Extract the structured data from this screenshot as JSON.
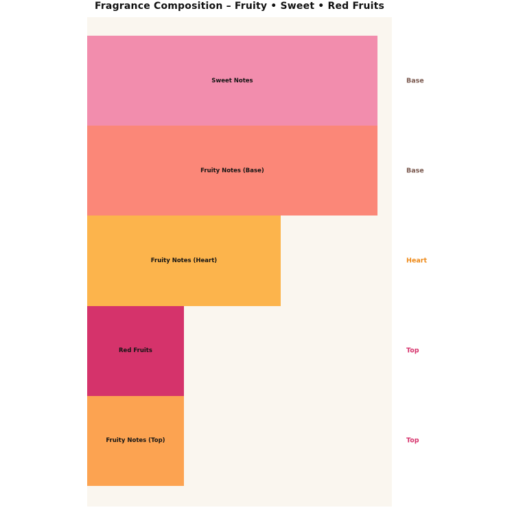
{
  "chart_data": {
    "type": "bar",
    "orientation": "horizontal",
    "title": "Fragrance Composition – Fruity • Sweet • Red Fruits",
    "xlabel": "",
    "ylabel": "",
    "xlim": [
      0,
      31.5
    ],
    "grid": false,
    "legend": null,
    "figure_background": "#ffffff",
    "plot_background": "#faf6ef",
    "categories": [
      "Sweet Notes",
      "Fruity Notes (Base)",
      "Fruity Notes (Heart)",
      "Red Fruits",
      "Fruity Notes (Top)"
    ],
    "values": [
      30,
      30,
      20,
      10,
      10
    ],
    "value_unit": "percent-share",
    "bars": [
      {
        "label": "Sweet Notes",
        "value": 30,
        "color": "#f28dad",
        "phase": "Base",
        "phase_color": "#7b5a50"
      },
      {
        "label": "Fruity Notes (Base)",
        "value": 30,
        "color": "#fb8778",
        "phase": "Base",
        "phase_color": "#7b5a50"
      },
      {
        "label": "Fruity Notes (Heart)",
        "value": 20,
        "color": "#fcb44c",
        "phase": "Heart",
        "phase_color": "#ee8b1c"
      },
      {
        "label": "Red Fruits",
        "value": 10,
        "color": "#d5336b",
        "phase": "Top",
        "phase_color": "#d6336c"
      },
      {
        "label": "Fruity Notes (Top)",
        "value": 10,
        "color": "#fca351",
        "phase": "Top",
        "phase_color": "#d6336c"
      }
    ]
  }
}
